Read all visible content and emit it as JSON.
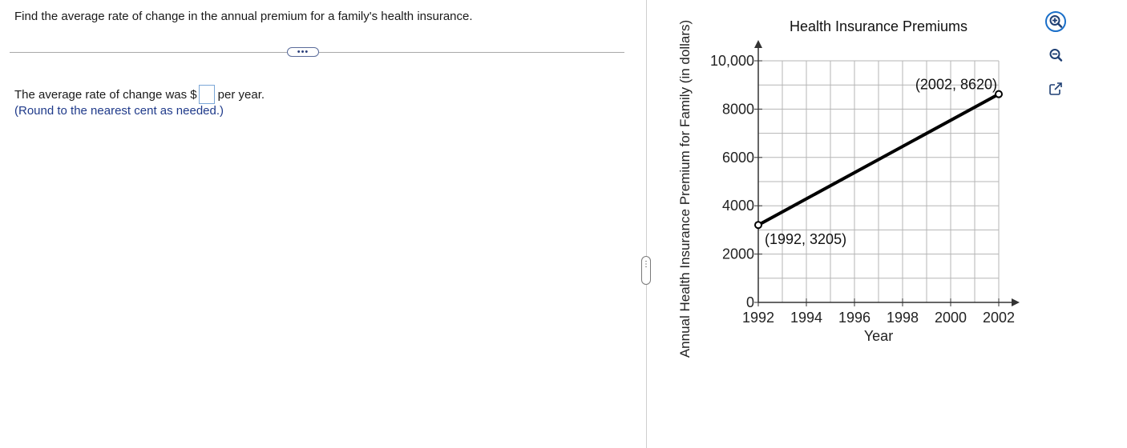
{
  "question": {
    "prompt": "Find the average rate of change in the annual premium for a family's health insurance.",
    "more_label": "•••",
    "answer_prefix": "The average rate of change was $",
    "answer_value": "",
    "answer_suffix": "per year.",
    "hint": "(Round to the nearest cent as needed.)"
  },
  "splitter": {
    "label": "⋮"
  },
  "chart_data": {
    "type": "line",
    "title": "Health Insurance Premiums",
    "xlabel": "Year",
    "ylabel": "Annual Health Insurance Premium for Family (in dollars)",
    "xlim": [
      1992,
      2002
    ],
    "ylim": [
      0,
      10000
    ],
    "x_ticks": [
      1992,
      1994,
      1996,
      1998,
      2000,
      2002
    ],
    "x_tick_labels": [
      "1992",
      "1994",
      "1996",
      "1998",
      "2000",
      "2002"
    ],
    "y_ticks": [
      0,
      2000,
      4000,
      6000,
      8000,
      10000
    ],
    "y_tick_labels": [
      "0",
      "2000",
      "4000",
      "6000",
      "8000",
      "10,000"
    ],
    "grid": true,
    "series": [
      {
        "name": "premium",
        "x": [
          1992,
          2002
        ],
        "y": [
          3205,
          8620
        ]
      }
    ],
    "annotations": [
      "(1992, 3205)",
      "(2002, 8620)"
    ]
  },
  "tools": {
    "zoom_in": "zoom-in-icon",
    "zoom_out": "zoom-out-icon",
    "popout": "popout-icon",
    "accent": "#1a6fc9"
  }
}
